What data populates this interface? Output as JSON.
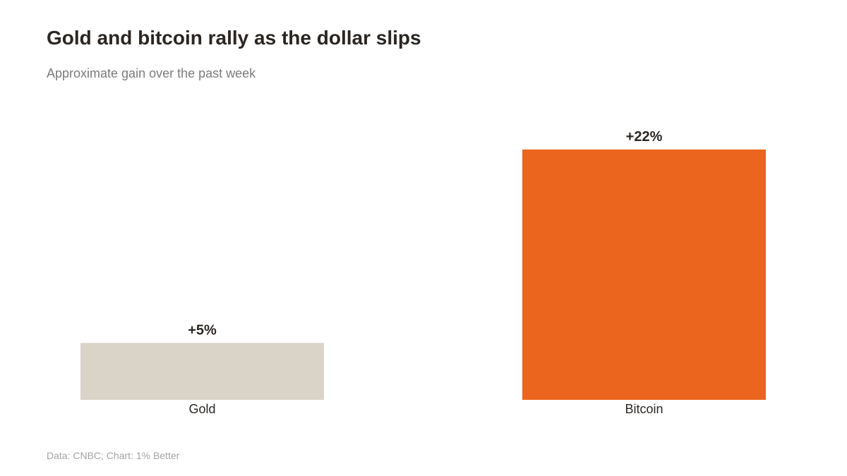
{
  "header": {
    "title": "Gold and bitcoin rally as the dollar slips",
    "subtitle": "Approximate gain over the past week"
  },
  "footer": {
    "source": "Data: CNBC; Chart: 1% Better"
  },
  "colors": {
    "gold_bar": "#d9d3c8",
    "bitcoin_bar": "#ec651e",
    "title_text": "#2b2622",
    "label_text": "#2b2622",
    "subtitle_text": "#7a7a7a",
    "source_text": "#a3a3a3"
  },
  "chart_data": {
    "type": "bar",
    "categories": [
      "Gold",
      "Bitcoin"
    ],
    "values": [
      5,
      22
    ],
    "data_labels": [
      "+5%",
      "+22%"
    ],
    "title": "Gold and bitcoin rally as the dollar slips",
    "subtitle": "Approximate gain over the past week",
    "xlabel": "",
    "ylabel": "",
    "ylim": [
      0,
      22
    ],
    "grid": false,
    "legend": "none"
  }
}
